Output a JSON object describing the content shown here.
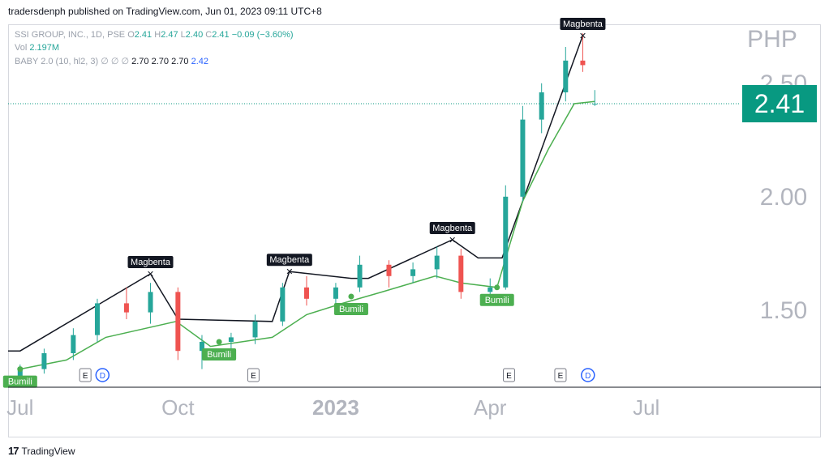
{
  "header": {
    "publish_line": "tradersdenph published on TradingView.com, Jun 01, 2023 09:11 UTC+8"
  },
  "legend": {
    "symbol": "SSI GROUP, INC., 1D, PSE",
    "o_label": "O",
    "o_value": "2.41",
    "h_label": "H",
    "h_value": "2.47",
    "l_label": "L",
    "l_value": "2.40",
    "c_label": "C",
    "c_value": "2.41",
    "change": "−0.09 (−3.60%)",
    "vol_label": "Vol",
    "vol_value": "2.197M",
    "indicator": "BABY 2.0 (10, hl2, 3)",
    "ind_placeholders": "∅  ∅  ∅",
    "ind_v1": "2.70",
    "ind_v2": "2.70",
    "ind_v3": "2.70",
    "ind_v4": "2.42"
  },
  "footer": {
    "brand": "TradingView",
    "logo": "17"
  },
  "colors": {
    "up": "#26a69a",
    "down": "#ef5350",
    "support": "#4caf50",
    "resistance": "#131722",
    "price_label_bg": "#089981",
    "axis_text": "#b2b5be",
    "event_blue": "#2962ff"
  },
  "chart_data": {
    "type": "candlestick",
    "title": "SSI GROUP, INC., 1D, PSE",
    "currency": "PHP",
    "last_price": "2.41",
    "x_ticks": [
      "Jul",
      "Oct",
      "2023",
      "Apr",
      "Jul"
    ],
    "y_ticks": [
      "1.50",
      "2.00",
      "2.50"
    ],
    "y_range": [
      1.16,
      2.76
    ],
    "x_range": [
      "2022-06-24",
      "2023-08-25"
    ],
    "volume_unit_note": "",
    "ohlc": [
      [
        "2022-07-01",
        1.2,
        1.26,
        1.18,
        1.24
      ],
      [
        "2022-07-15",
        1.24,
        1.33,
        1.22,
        1.31
      ],
      [
        "2022-08-01",
        1.31,
        1.42,
        1.28,
        1.39
      ],
      [
        "2022-08-15",
        1.39,
        1.55,
        1.36,
        1.53
      ],
      [
        "2022-09-01",
        1.53,
        1.6,
        1.46,
        1.49
      ],
      [
        "2022-09-15",
        1.49,
        1.62,
        1.44,
        1.58
      ],
      [
        "2022-10-01",
        1.58,
        1.6,
        1.28,
        1.32
      ],
      [
        "2022-10-15",
        1.32,
        1.39,
        1.24,
        1.36
      ],
      [
        "2022-11-01",
        1.36,
        1.4,
        1.32,
        1.38
      ],
      [
        "2022-11-15",
        1.38,
        1.48,
        1.35,
        1.45
      ],
      [
        "2022-12-01",
        1.45,
        1.62,
        1.43,
        1.6
      ],
      [
        "2022-12-15",
        1.6,
        1.65,
        1.52,
        1.55
      ],
      [
        "2023-01-01",
        1.55,
        1.62,
        1.5,
        1.6
      ],
      [
        "2023-01-15",
        1.6,
        1.74,
        1.58,
        1.7
      ],
      [
        "2023-02-01",
        1.7,
        1.72,
        1.6,
        1.65
      ],
      [
        "2023-02-15",
        1.65,
        1.71,
        1.62,
        1.68
      ],
      [
        "2023-03-01",
        1.68,
        1.78,
        1.64,
        1.74
      ],
      [
        "2023-03-15",
        1.74,
        1.77,
        1.55,
        1.58
      ],
      [
        "2023-04-01",
        1.58,
        1.64,
        1.54,
        1.6
      ],
      [
        "2023-04-10",
        1.6,
        2.05,
        1.59,
        2.0
      ],
      [
        "2023-04-20",
        2.0,
        2.4,
        1.98,
        2.34
      ],
      [
        "2023-05-01",
        2.34,
        2.5,
        2.28,
        2.46
      ],
      [
        "2023-05-15",
        2.46,
        2.66,
        2.42,
        2.6
      ],
      [
        "2023-05-25",
        2.6,
        2.72,
        2.55,
        2.58
      ],
      [
        "2023-06-01",
        2.41,
        2.47,
        2.4,
        2.41
      ]
    ],
    "support_line": [
      [
        "2022-07-01",
        1.24
      ],
      [
        "2022-07-28",
        1.28
      ],
      [
        "2022-08-20",
        1.38
      ],
      [
        "2022-09-30",
        1.45
      ],
      [
        "2022-10-20",
        1.34
      ],
      [
        "2022-11-25",
        1.38
      ],
      [
        "2022-12-15",
        1.48
      ],
      [
        "2023-01-05",
        1.53
      ],
      [
        "2023-01-28",
        1.58
      ],
      [
        "2023-02-28",
        1.65
      ],
      [
        "2023-03-15",
        1.62
      ],
      [
        "2023-04-05",
        1.6
      ],
      [
        "2023-04-20",
        1.98
      ],
      [
        "2023-05-05",
        2.21
      ],
      [
        "2023-05-20",
        2.41
      ],
      [
        "2023-06-01",
        2.42
      ]
    ],
    "resistance_line": [
      [
        "2022-06-24",
        1.32
      ],
      [
        "2022-07-01",
        1.32
      ],
      [
        "2022-09-15",
        1.66
      ],
      [
        "2022-10-01",
        1.46
      ],
      [
        "2022-11-25",
        1.45
      ],
      [
        "2022-12-05",
        1.67
      ],
      [
        "2023-01-10",
        1.64
      ],
      [
        "2023-01-20",
        1.64
      ],
      [
        "2023-03-10",
        1.81
      ],
      [
        "2023-03-25",
        1.73
      ],
      [
        "2023-04-08",
        1.73
      ],
      [
        "2023-05-25",
        2.71
      ]
    ],
    "signals": [
      {
        "date": "2022-07-01",
        "type": "buy",
        "label": "Bumili",
        "price": 1.24
      },
      {
        "date": "2022-09-15",
        "type": "sell",
        "label": "Magbenta",
        "price": 1.66
      },
      {
        "date": "2022-10-25",
        "type": "buy",
        "label": "Bumili",
        "price": 1.36
      },
      {
        "date": "2022-12-05",
        "type": "sell",
        "label": "Magbenta",
        "price": 1.67
      },
      {
        "date": "2023-01-10",
        "type": "buy",
        "label": "Bumili",
        "price": 1.56
      },
      {
        "date": "2023-03-10",
        "type": "sell",
        "label": "Magbenta",
        "price": 1.81
      },
      {
        "date": "2023-04-05",
        "type": "buy",
        "label": "Bumili",
        "price": 1.6
      },
      {
        "date": "2023-05-25",
        "type": "sell",
        "label": "Magbenta",
        "price": 2.71
      }
    ],
    "events": [
      {
        "date": "2022-08-08",
        "label": "E"
      },
      {
        "date": "2022-08-18",
        "label": "D"
      },
      {
        "date": "2022-11-14",
        "label": "E"
      },
      {
        "date": "2023-04-12",
        "label": "E"
      },
      {
        "date": "2023-05-12",
        "label": "E"
      },
      {
        "date": "2023-05-28",
        "label": "D"
      }
    ]
  }
}
